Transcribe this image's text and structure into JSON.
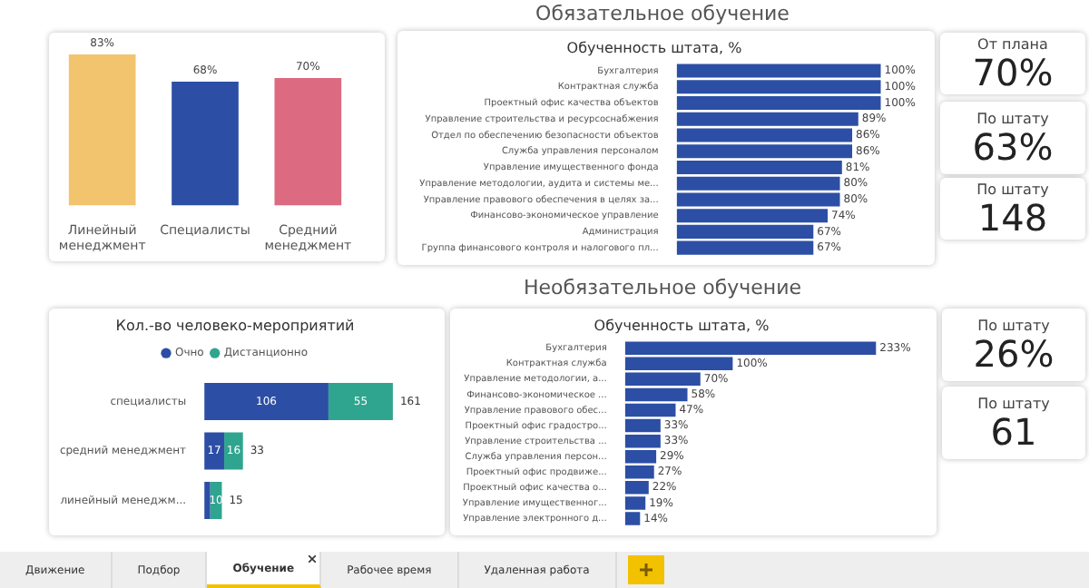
{
  "chart_data": [
    {
      "type": "other",
      "title": "Обязательное обучение"
    },
    {
      "type": "bar",
      "categories": [
        "Линейный менеджмент",
        "Специалисты",
        "Средний менеджмент"
      ],
      "values": [
        83,
        68,
        70
      ],
      "colors": [
        "#f2c46d",
        "#2c4fa5",
        "#dc6a80"
      ],
      "value_labels": [
        "83%",
        "68%",
        "70%"
      ],
      "tick_labels": "x"
    },
    {
      "type": "bar",
      "orientation": "horizontal",
      "title": "Обученность штата, %",
      "categories": [
        "Бухгалтерия",
        "Контрактная служба",
        "Проектный офис качества объектов",
        "Управление строительства и ресурсоснабжения",
        "Отдел по обеспечению безопасности объектов",
        "Служба управления персоналом",
        "Управление имущественного фонда",
        "Управление методологии, аудита и системы ме...",
        "Управление правового обеспечения в целях за...",
        "Финансово-экономическое управление",
        "Администрация",
        "Группа финансового контроля и налогового пл..."
      ],
      "values": [
        100,
        100,
        100,
        89,
        86,
        86,
        81,
        80,
        80,
        74,
        67,
        67
      ],
      "color": "#2c4fa5",
      "value_labels": [
        "100%",
        "100%",
        "100%",
        "89%",
        "86%",
        "86%",
        "81%",
        "80%",
        "80%",
        "74%",
        "67%",
        "67%"
      ],
      "tick_labels": "y"
    },
    {
      "type": "other",
      "title": "От плана",
      "annotations": [
        "70%"
      ]
    },
    {
      "type": "other",
      "title": "По штату",
      "annotations": [
        "63%"
      ]
    },
    {
      "type": "other",
      "title": "По штату",
      "annotations": [
        "148"
      ]
    },
    {
      "type": "other",
      "title": "Необязательное обучение"
    },
    {
      "type": "bar",
      "orientation": "horizontal",
      "stacked": true,
      "title": "Кол.-во человеко-мероприятий",
      "categories": [
        "специалисты",
        "средний менеджмент",
        "линейный менеджм..."
      ],
      "legend": "top",
      "tick_labels": "y",
      "totals": [
        "161",
        "33",
        "15"
      ],
      "series": [
        {
          "name": "Очно",
          "color": "#2c4fa5",
          "values": [
            106,
            17,
            5
          ],
          "value_labels": [
            "106",
            "17",
            null
          ]
        },
        {
          "name": "Дистанционно",
          "color": "#2fa58f",
          "values": [
            55,
            16,
            10
          ],
          "value_labels": [
            "55",
            "16",
            "10"
          ]
        }
      ]
    },
    {
      "type": "bar",
      "orientation": "horizontal",
      "title": "Обученность штата, %",
      "categories": [
        "Бухгалтерия",
        "Контрактная служба",
        "Управление методологии, а...",
        "Финансово-экономическое ...",
        "Управление правового обес...",
        "Проектный офис градостро...",
        "Управление строительства ...",
        "Служба управления персон...",
        "Проектный офис продвиже...",
        "Проектный офис качества о...",
        "Управление имущественног...",
        "Управление электронного д..."
      ],
      "values": [
        233,
        100,
        70,
        58,
        47,
        33,
        33,
        29,
        27,
        22,
        19,
        14
      ],
      "color": "#2c4fa5",
      "value_labels": [
        "233%",
        "100%",
        "70%",
        "58%",
        "47%",
        "33%",
        "33%",
        "29%",
        "27%",
        "22%",
        "19%",
        "14%"
      ],
      "tick_labels": "y"
    },
    {
      "type": "other",
      "title": "По штату",
      "annotations": [
        "26%"
      ]
    },
    {
      "type": "other",
      "title": "По штату",
      "annotations": [
        "61"
      ]
    },
    {
      "type": "other",
      "annotations": [
        "Движение",
        "Подбор",
        "Обучение",
        "Рабочее время",
        "Удаленная работа"
      ]
    }
  ]
}
